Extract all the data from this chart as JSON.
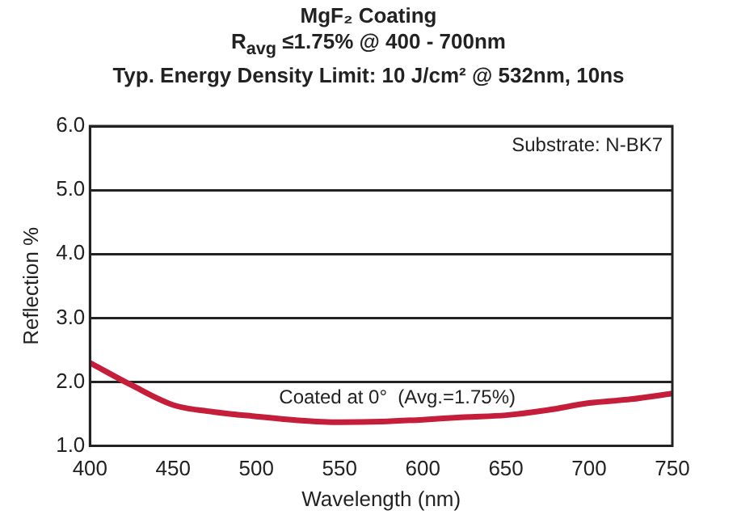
{
  "chart_data": {
    "type": "line",
    "title": "MgF₂ Coating",
    "subtitle": "R$_{avg}$ ≤1.75% @ 400 - 700nm\nTyp. Energy Density Limit: 10 J/cm² @ 532nm, 10ns",
    "xlabel": "Wavelength (nm)",
    "ylabel": "Reflection %",
    "annotations": [
      "Substrate: N-BK7",
      "Coated at 0°  (Avg.=1.75%)"
    ],
    "x": [
      400,
      425,
      450,
      475,
      500,
      525,
      550,
      575,
      600,
      625,
      650,
      675,
      700,
      725,
      750
    ],
    "series": [
      {
        "color": "#c41e3a",
        "values": [
          2.3,
          1.95,
          1.64,
          1.53,
          1.46,
          1.4,
          1.37,
          1.38,
          1.41,
          1.45,
          1.48,
          1.56,
          1.67,
          1.73,
          1.82
        ]
      }
    ],
    "xlim": [
      400,
      750
    ],
    "xticks": [
      400,
      450,
      500,
      550,
      600,
      650,
      700,
      750
    ],
    "ylim": [
      1,
      6
    ],
    "yticks": [
      {
        "value": 1,
        "label": "1.0"
      },
      {
        "value": 2,
        "label": "2.0"
      },
      {
        "value": 3,
        "label": "3.0"
      },
      {
        "value": 4,
        "label": "4.0"
      },
      {
        "value": 5,
        "label": "5.0"
      },
      {
        "value": 6,
        "label": "6.0"
      }
    ],
    "grid": "y",
    "marker": "none",
    "line_style": "solid",
    "legend": false
  }
}
